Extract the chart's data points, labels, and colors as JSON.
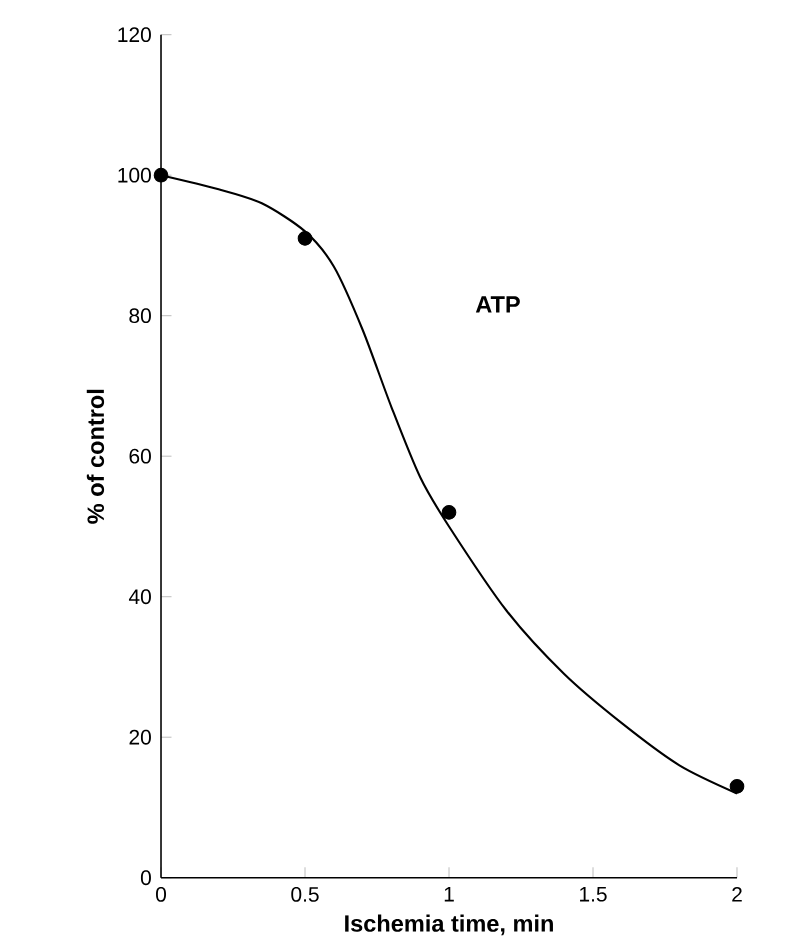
{
  "chart_data": {
    "type": "line",
    "xlabel": "Ischemia time, min",
    "ylabel": "% of control",
    "xlim": [
      0,
      2
    ],
    "xticks": [
      0,
      0.5,
      1,
      1.5,
      2
    ],
    "ylim": [
      0,
      120
    ],
    "yticks": [
      0,
      20,
      40,
      60,
      80,
      100,
      120
    ],
    "grid": false,
    "series": [
      {
        "color": "#000000",
        "marker": "none",
        "x": [
          0,
          0.2,
          0.35,
          0.5,
          0.6,
          0.7,
          0.8,
          0.9,
          1.0,
          1.2,
          1.4,
          1.6,
          1.8,
          2.0
        ],
        "values": [
          100,
          98,
          96,
          92,
          87,
          78,
          67,
          57,
          50,
          38,
          29,
          22,
          16,
          12
        ]
      },
      {
        "type": "scatter",
        "color": "#000000",
        "marker": "circle",
        "x": [
          0,
          0.5,
          1,
          2
        ],
        "values": [
          100,
          91,
          52,
          13
        ]
      }
    ],
    "annotations": [
      "ATP"
    ]
  }
}
